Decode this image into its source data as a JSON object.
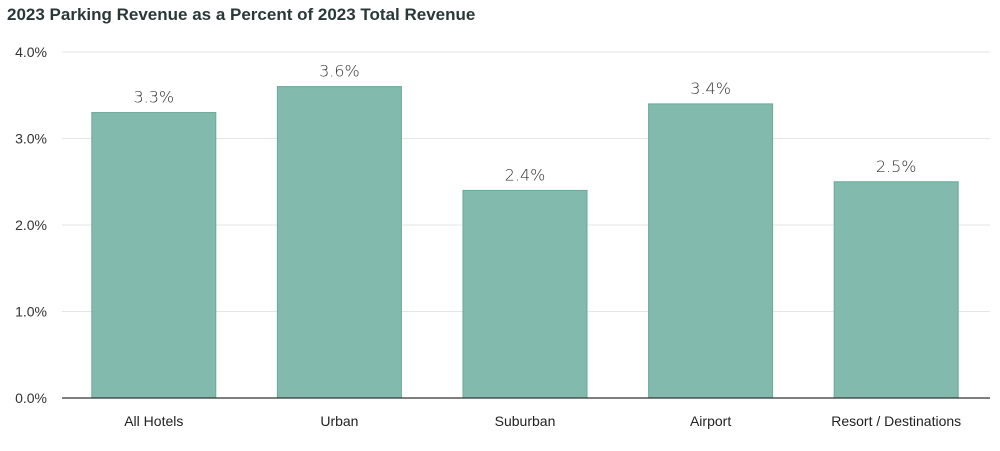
{
  "chart_data": {
    "type": "bar",
    "title": "2023 Parking Revenue as a Percent of 2023 Total Revenue",
    "categories": [
      "All Hotels",
      "Urban",
      "Suburban",
      "Airport",
      "Resort / Destinations"
    ],
    "values": [
      3.3,
      3.6,
      2.4,
      3.4,
      2.5
    ],
    "data_labels": [
      "3.3%",
      "3.6%",
      "2.4%",
      "3.4%",
      "2.5%"
    ],
    "yticks": [
      "0.0%",
      "1.0%",
      "2.0%",
      "3.0%",
      "4.0%"
    ],
    "ytick_values": [
      0,
      1,
      2,
      3,
      4
    ],
    "xlabel": "",
    "ylabel": "",
    "ylim": [
      0,
      4
    ],
    "grid": true,
    "bar_color": "#82bbad",
    "bar_edge_color": "#6aa897"
  }
}
